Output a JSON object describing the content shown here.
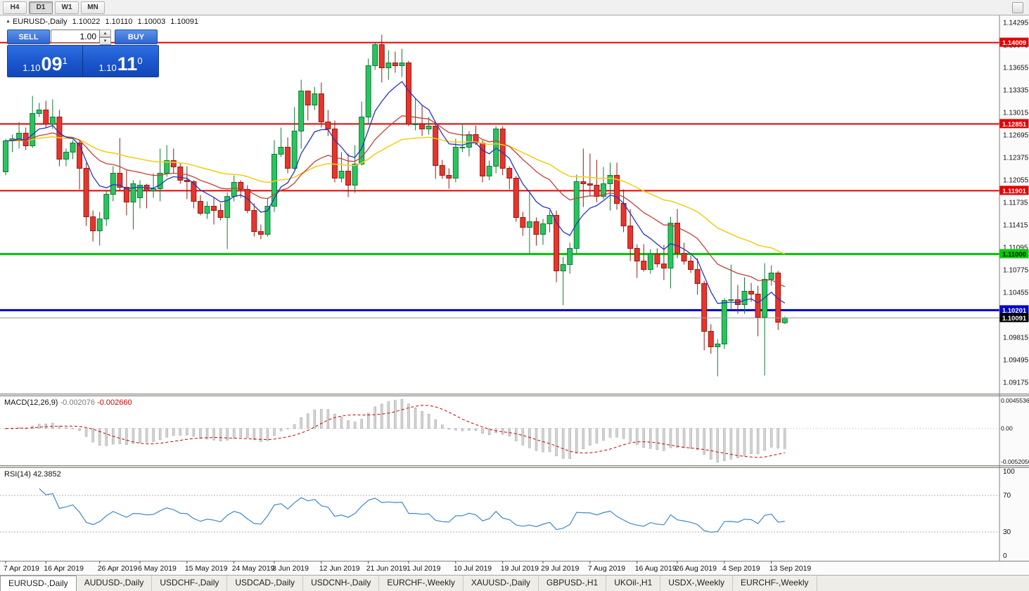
{
  "icons": {
    "chart_arrow": "▲",
    "spin_up": "▴",
    "spin_down": "▾"
  },
  "toolbar": {
    "timeframes": [
      {
        "label": "H4",
        "active": false
      },
      {
        "label": "D1",
        "active": true
      },
      {
        "label": "W1",
        "active": false
      },
      {
        "label": "MN",
        "active": false
      }
    ]
  },
  "chart_header": {
    "symbol_label": "EURUSD-,Daily",
    "open": "1.10022",
    "high": "1.10110",
    "low": "1.10003",
    "close": "1.10091"
  },
  "trade_panel": {
    "sell_label": "SELL",
    "buy_label": "BUY",
    "volume": "1.00",
    "sell_price": {
      "base": "1.10",
      "big": "09",
      "sup": "1"
    },
    "buy_price": {
      "base": "1.10",
      "big": "11",
      "sup": "0"
    }
  },
  "tabs": [
    {
      "label": "EURUSD-,Daily",
      "active": true
    },
    {
      "label": "AUDUSD-,Daily",
      "active": false
    },
    {
      "label": "USDCHF-,Daily",
      "active": false
    },
    {
      "label": "USDCAD-,Daily",
      "active": false
    },
    {
      "label": "USDCNH-,Daily",
      "active": false
    },
    {
      "label": "EURCHF-,Weekly",
      "active": false
    },
    {
      "label": "XAUUSD-,Daily",
      "active": false
    },
    {
      "label": "GBPUSD-,H1",
      "active": false
    },
    {
      "label": "UKOil-,H1",
      "active": false
    },
    {
      "label": "USDX-,Weekly",
      "active": false
    },
    {
      "label": "EURCHF-,Weekly",
      "active": false
    }
  ],
  "chart_data": {
    "type": "candlestick",
    "symbol": "EURUSD-,Daily",
    "colors": {
      "bull_fill": "#29c45f",
      "bull_stroke": "#117a35",
      "bear_fill": "#e8342c",
      "bear_stroke": "#8f1d14",
      "ma_fast": "#2336c4",
      "ma_mid": "#c4403a",
      "ma_slow": "#f2cf1d",
      "macd_hist": "#d4d4d4",
      "macd_hist_stroke": "#9e9e9e",
      "macd_signal": "#cc0000",
      "rsi_line": "#3f87c9",
      "resistance": "#e60000",
      "support_green": "#00cc00",
      "support_blue": "#0000cc"
    },
    "y_axis": {
      "top_price": 1.14295,
      "price_step": 0.0032,
      "labels": [
        "1.14295",
        "1.13975",
        "1.13655",
        "1.13335",
        "1.13015",
        "1.12695",
        "1.12375",
        "1.12055",
        "1.11735",
        "1.11415",
        "1.11095",
        "1.10775",
        "1.10455",
        "1.10135",
        "1.09815",
        "1.09495",
        "1.09175"
      ]
    },
    "hlines": [
      {
        "price": 1.14009,
        "label": "1.14009",
        "color": "#e60000",
        "width": 2,
        "badge_bg": "#e60000",
        "badge_fg": "#ffffff"
      },
      {
        "price": 1.12851,
        "label": "1.12851",
        "color": "#e60000",
        "width": 2,
        "badge_bg": "#e60000",
        "badge_fg": "#ffffff"
      },
      {
        "price": 1.11901,
        "label": "1.11901",
        "color": "#e60000",
        "width": 2,
        "badge_bg": "#e60000",
        "badge_fg": "#ffffff"
      },
      {
        "price": 1.11,
        "label": "1.11000",
        "color": "#00cc00",
        "width": 3,
        "badge_bg": "#00cc00",
        "badge_fg": "#000000"
      },
      {
        "price": 1.10201,
        "label": "1.10201",
        "color": "#0000cc",
        "width": 3,
        "badge_bg": "#0000cc",
        "badge_fg": "#ffffff"
      }
    ],
    "current_price": {
      "value": 1.10091,
      "label": "1.10091",
      "badge_bg": "#000000",
      "badge_fg": "#ffffff",
      "line_color": "#9a9a9a"
    },
    "moving_averages": [
      {
        "name": "ma-slow",
        "period": 45,
        "color": "#f2cf1d",
        "width": 1.6
      },
      {
        "name": "ma-mid",
        "period": 21,
        "color": "#c4403a",
        "width": 1.3
      },
      {
        "name": "ma-fast",
        "period": 8,
        "color": "#2336c4",
        "width": 1.3
      }
    ],
    "macd": {
      "label": "MACD(12,26,9)",
      "main_value": "-0.002076",
      "signal_value": "-0.002660",
      "fast": 12,
      "slow": 26,
      "signal_period": 9,
      "scale_max": 0.0045536,
      "scale_min": -0.005205,
      "scale_labels": [
        "0.0045536",
        "0.00",
        "-0.0052050"
      ]
    },
    "rsi": {
      "label": "RSI(14)",
      "value": "42.3852",
      "period": 14,
      "levels": [
        100,
        70,
        30,
        0
      ],
      "guide_levels": [
        70,
        30
      ]
    },
    "x_labels": [
      {
        "t": "7 Apr 2019",
        "i": 0
      },
      {
        "t": "16 Apr 2019",
        "i": 6
      },
      {
        "t": "26 Apr 2019",
        "i": 14
      },
      {
        "t": "6 May 2019",
        "i": 20
      },
      {
        "t": "15 May 2019",
        "i": 27
      },
      {
        "t": "24 May 2019",
        "i": 34
      },
      {
        "t": "3 Jun 2019",
        "i": 40
      },
      {
        "t": "12 Jun 2019",
        "i": 47
      },
      {
        "t": "21 Jun 2019",
        "i": 54
      },
      {
        "t": "1 Jul 2019",
        "i": 60
      },
      {
        "t": "10 Jul 2019",
        "i": 67
      },
      {
        "t": "19 Jul 2019",
        "i": 74
      },
      {
        "t": "29 Jul 2019",
        "i": 80
      },
      {
        "t": "7 Aug 2019",
        "i": 87
      },
      {
        "t": "16 Aug 2019",
        "i": 94
      },
      {
        "t": "26 Aug 2019",
        "i": 100
      },
      {
        "t": "4 Sep 2019",
        "i": 107
      },
      {
        "t": "13 Sep 2019",
        "i": 114
      }
    ],
    "candles": [
      [
        1.1217,
        1.1264,
        1.1212,
        1.1261
      ],
      [
        1.1261,
        1.127,
        1.1245,
        1.1264
      ],
      [
        1.1264,
        1.1288,
        1.125,
        1.1272
      ],
      [
        1.1272,
        1.128,
        1.1248,
        1.1254
      ],
      [
        1.1254,
        1.1325,
        1.1251,
        1.13
      ],
      [
        1.13,
        1.1315,
        1.1295,
        1.1305
      ],
      [
        1.1305,
        1.1318,
        1.128,
        1.1285
      ],
      [
        1.1285,
        1.132,
        1.1278,
        1.1295
      ],
      [
        1.1295,
        1.1305,
        1.1225,
        1.1235
      ],
      [
        1.1235,
        1.125,
        1.1225,
        1.1245
      ],
      [
        1.1245,
        1.1262,
        1.1235,
        1.1258
      ],
      [
        1.1258,
        1.1262,
        1.1192,
        1.1222
      ],
      [
        1.1222,
        1.123,
        1.114,
        1.1153
      ],
      [
        1.1153,
        1.1162,
        1.1118,
        1.1133
      ],
      [
        1.1133,
        1.116,
        1.1112,
        1.115
      ],
      [
        1.115,
        1.119,
        1.114,
        1.1185
      ],
      [
        1.1185,
        1.1225,
        1.1175,
        1.1215
      ],
      [
        1.1215,
        1.1265,
        1.119,
        1.1195
      ],
      [
        1.1195,
        1.122,
        1.1155,
        1.1174
      ],
      [
        1.1174,
        1.1205,
        1.1135,
        1.12
      ],
      [
        1.118,
        1.1205,
        1.1165,
        1.1198
      ],
      [
        1.1198,
        1.12,
        1.1165,
        1.119
      ],
      [
        1.119,
        1.1215,
        1.118,
        1.1193
      ],
      [
        1.1193,
        1.125,
        1.1175,
        1.1215
      ],
      [
        1.1215,
        1.1255,
        1.121,
        1.1233
      ],
      [
        1.1233,
        1.125,
        1.1215,
        1.1224
      ],
      [
        1.1224,
        1.123,
        1.12,
        1.1205
      ],
      [
        1.1205,
        1.1225,
        1.1178,
        1.1203
      ],
      [
        1.1203,
        1.1205,
        1.1165,
        1.1175
      ],
      [
        1.1175,
        1.1184,
        1.1155,
        1.1158
      ],
      [
        1.1158,
        1.1175,
        1.115,
        1.1168
      ],
      [
        1.1168,
        1.118,
        1.1142,
        1.1162
      ],
      [
        1.1162,
        1.1172,
        1.1148,
        1.1152
      ],
      [
        1.1152,
        1.1188,
        1.1107,
        1.1182
      ],
      [
        1.1182,
        1.1212,
        1.1175,
        1.1202
      ],
      [
        1.1202,
        1.1205,
        1.118,
        1.1192
      ],
      [
        1.1192,
        1.1198,
        1.1158,
        1.1162
      ],
      [
        1.1162,
        1.1172,
        1.1125,
        1.1132
      ],
      [
        1.1132,
        1.1142,
        1.1121,
        1.1128
      ],
      [
        1.1128,
        1.118,
        1.1125,
        1.1168
      ],
      [
        1.1168,
        1.1262,
        1.116,
        1.1242
      ],
      [
        1.1242,
        1.128,
        1.1238,
        1.1252
      ],
      [
        1.1252,
        1.1266,
        1.1215,
        1.1222
      ],
      [
        1.1222,
        1.1309,
        1.122,
        1.1275
      ],
      [
        1.1275,
        1.1348,
        1.125,
        1.1332
      ],
      [
        1.1332,
        1.1332,
        1.129,
        1.1312
      ],
      [
        1.1312,
        1.1338,
        1.1305,
        1.1328
      ],
      [
        1.1328,
        1.1344,
        1.128,
        1.1288
      ],
      [
        1.1288,
        1.1305,
        1.1268,
        1.1278
      ],
      [
        1.1278,
        1.129,
        1.1202,
        1.1208
      ],
      [
        1.1208,
        1.1245,
        1.1202,
        1.1218
      ],
      [
        1.1218,
        1.1243,
        1.1181,
        1.1198
      ],
      [
        1.1198,
        1.1255,
        1.1187,
        1.1228
      ],
      [
        1.1228,
        1.1317,
        1.1226,
        1.1295
      ],
      [
        1.1295,
        1.1378,
        1.1285,
        1.1368
      ],
      [
        1.1368,
        1.1402,
        1.1362,
        1.1398
      ],
      [
        1.1398,
        1.1412,
        1.1344,
        1.1365
      ],
      [
        1.1365,
        1.139,
        1.1348,
        1.1372
      ],
      [
        1.1372,
        1.1388,
        1.1358,
        1.1368
      ],
      [
        1.1368,
        1.1392,
        1.1352,
        1.1372
      ],
      [
        1.1372,
        1.1375,
        1.1282,
        1.1285
      ],
      [
        1.1285,
        1.1322,
        1.1276,
        1.1285
      ],
      [
        1.1285,
        1.1312,
        1.1268,
        1.1278
      ],
      [
        1.1278,
        1.1295,
        1.127,
        1.1282
      ],
      [
        1.1282,
        1.1288,
        1.1207,
        1.1226
      ],
      [
        1.1226,
        1.1234,
        1.1207,
        1.1212
      ],
      [
        1.1212,
        1.1222,
        1.1193,
        1.1208
      ],
      [
        1.1208,
        1.1264,
        1.1202,
        1.1252
      ],
      [
        1.1252,
        1.1286,
        1.1245,
        1.1252
      ],
      [
        1.1252,
        1.1275,
        1.1239,
        1.127
      ],
      [
        1.127,
        1.1283,
        1.1255,
        1.1258
      ],
      [
        1.1258,
        1.1262,
        1.1202,
        1.1211
      ],
      [
        1.1211,
        1.1233,
        1.1205,
        1.1225
      ],
      [
        1.1225,
        1.1282,
        1.1215,
        1.1278
      ],
      [
        1.1278,
        1.1282,
        1.1212,
        1.1222
      ],
      [
        1.1222,
        1.1225,
        1.1192,
        1.1208
      ],
      [
        1.1208,
        1.1211,
        1.1146,
        1.1152
      ],
      [
        1.1152,
        1.116,
        1.1126,
        1.1138
      ],
      [
        1.1138,
        1.1188,
        1.1101,
        1.1146
      ],
      [
        1.1146,
        1.1152,
        1.1112,
        1.1128
      ],
      [
        1.1128,
        1.115,
        1.1113,
        1.1143
      ],
      [
        1.1143,
        1.1162,
        1.1131,
        1.1155
      ],
      [
        1.1155,
        1.1162,
        1.106,
        1.1076
      ],
      [
        1.1076,
        1.1096,
        1.1027,
        1.1085
      ],
      [
        1.1085,
        1.1116,
        1.1072,
        1.1108
      ],
      [
        1.1108,
        1.1213,
        1.1101,
        1.1203
      ],
      [
        1.1203,
        1.125,
        1.1167,
        1.12
      ],
      [
        1.12,
        1.1243,
        1.1183,
        1.1198
      ],
      [
        1.1198,
        1.1234,
        1.1174,
        1.1182
      ],
      [
        1.1182,
        1.1224,
        1.1178,
        1.12
      ],
      [
        1.12,
        1.123,
        1.1162,
        1.1212
      ],
      [
        1.1212,
        1.123,
        1.1163,
        1.1172
      ],
      [
        1.1172,
        1.1192,
        1.1131,
        1.114
      ],
      [
        1.114,
        1.1164,
        1.109,
        1.1108
      ],
      [
        1.1108,
        1.1114,
        1.1066,
        1.109
      ],
      [
        1.109,
        1.1114,
        1.1075,
        1.1078
      ],
      [
        1.1078,
        1.1107,
        1.1072,
        1.11
      ],
      [
        1.11,
        1.1108,
        1.1081,
        1.1086
      ],
      [
        1.1086,
        1.1113,
        1.1063,
        1.108
      ],
      [
        1.108,
        1.1153,
        1.1051,
        1.1144
      ],
      [
        1.1144,
        1.1164,
        1.1094,
        1.1101
      ],
      [
        1.1101,
        1.1116,
        1.1085,
        1.109
      ],
      [
        1.109,
        1.1098,
        1.1073,
        1.1078
      ],
      [
        1.1078,
        1.1094,
        1.1042,
        1.1058
      ],
      [
        1.1058,
        1.1062,
        1.0963,
        1.099
      ],
      [
        1.099,
        1.1,
        1.0958,
        1.0968
      ],
      [
        1.0968,
        1.0979,
        1.0926,
        1.0972
      ],
      [
        1.0972,
        1.1037,
        1.0965,
        1.1034
      ],
      [
        1.1034,
        1.1085,
        1.1022,
        1.1035
      ],
      [
        1.1035,
        1.1056,
        1.1015,
        1.1028
      ],
      [
        1.1028,
        1.1067,
        1.1015,
        1.1047
      ],
      [
        1.1047,
        1.1059,
        1.1032,
        1.1043
      ],
      [
        1.1043,
        1.1055,
        1.0983,
        1.101
      ],
      [
        1.101,
        1.1087,
        1.0927,
        1.1064
      ],
      [
        1.1064,
        1.1084,
        1.1055,
        1.1073
      ],
      [
        1.1073,
        1.1076,
        1.0992,
        1.1003
      ],
      [
        1.10022,
        1.1011,
        1.10003,
        1.10091
      ]
    ]
  }
}
